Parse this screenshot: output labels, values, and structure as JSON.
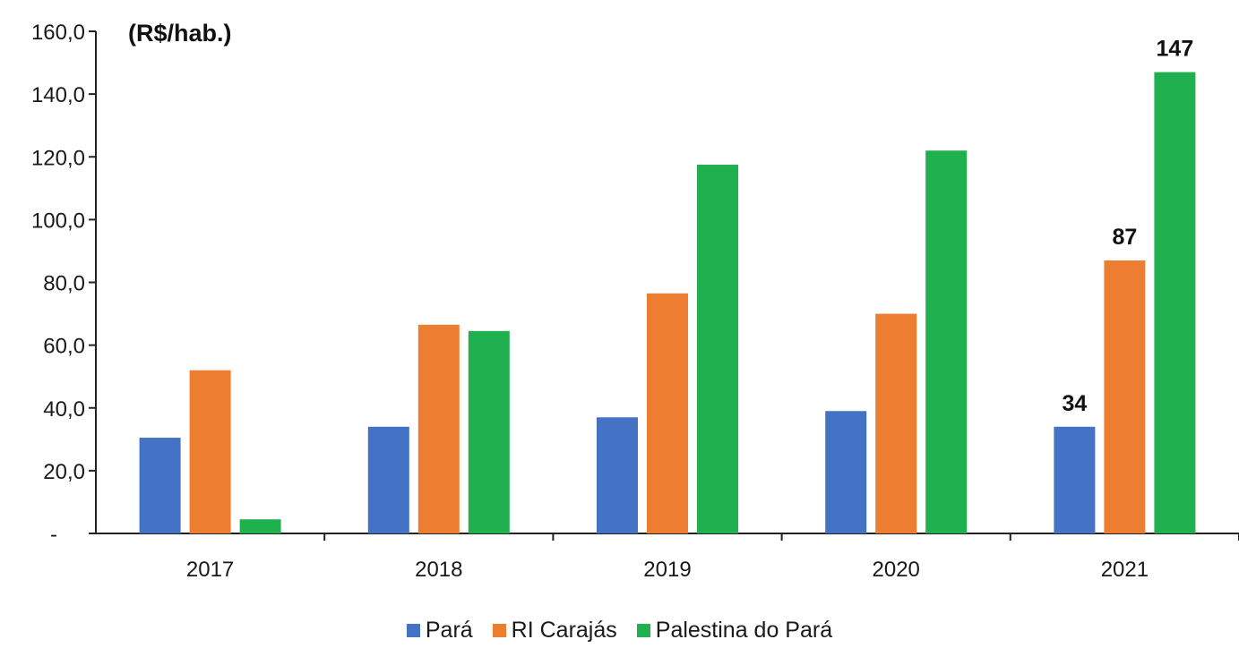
{
  "chart_data": {
    "type": "bar",
    "title": "",
    "unit_label": "(R$/hab.)",
    "xlabel": "",
    "ylabel": "",
    "categories": [
      "2017",
      "2018",
      "2019",
      "2020",
      "2021"
    ],
    "ylim": [
      0,
      160
    ],
    "yticks": [
      {
        "value": 0,
        "label": "-"
      },
      {
        "value": 20,
        "label": "20,0"
      },
      {
        "value": 40,
        "label": "40,0"
      },
      {
        "value": 60,
        "label": "60,0"
      },
      {
        "value": 80,
        "label": "80,0"
      },
      {
        "value": 100,
        "label": "100,0"
      },
      {
        "value": 120,
        "label": "120,0"
      },
      {
        "value": 140,
        "label": "140,0"
      },
      {
        "value": 160,
        "label": "160,0"
      }
    ],
    "series": [
      {
        "name": "Pará",
        "color": "#4472c4",
        "values": [
          30.5,
          34,
          37,
          39,
          34
        ],
        "labels": [
          "",
          "",
          "",
          "",
          "34"
        ]
      },
      {
        "name": "RI Carajás",
        "color": "#ed7d31",
        "values": [
          52,
          66.5,
          76.5,
          70,
          87
        ],
        "labels": [
          "",
          "",
          "",
          "",
          "87"
        ]
      },
      {
        "name": "Palestina do Pará",
        "color": "#21b050",
        "values": [
          4.5,
          64.5,
          117.5,
          122,
          147
        ],
        "labels": [
          "",
          "",
          "",
          "",
          "147"
        ]
      }
    ],
    "grid": false,
    "legend": "bottom"
  }
}
